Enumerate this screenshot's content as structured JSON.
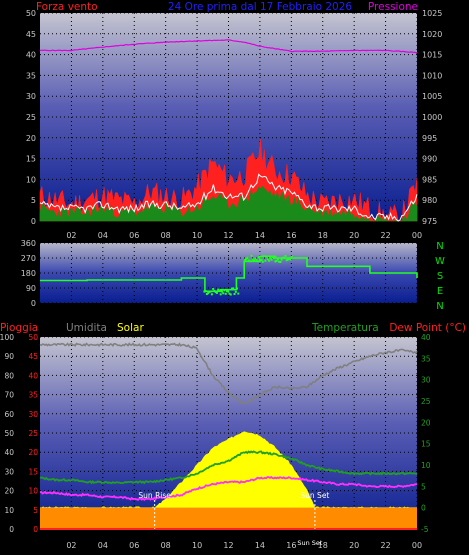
{
  "colors": {
    "wind": "#ff2020",
    "wind_avg": "#ffffff",
    "pressure": "#e000e0",
    "rain": "#ff2020",
    "humidity": "#808080",
    "solar": "#ffff00",
    "temperature": "#20a020",
    "dewpoint": "#ff30ff",
    "direction": "#22ff22",
    "direction_label": "#00e000",
    "title": "#2020ff",
    "axis_text": "#c8c8c8"
  },
  "chart_data": [
    {
      "type": "line",
      "title": "24 Ore prima dal 17 Febbraio 2026",
      "left_label": "Forza vento",
      "right_label": "Pressione",
      "x_ticks": [
        "02",
        "04",
        "06",
        "08",
        "10",
        "12",
        "14",
        "16",
        "18",
        "20",
        "22",
        "00"
      ],
      "y_left_ticks": [
        0,
        5,
        10,
        15,
        20,
        25,
        30,
        35,
        40,
        45,
        50
      ],
      "y_right_ticks": [
        975,
        980,
        985,
        990,
        995,
        1000,
        1005,
        1010,
        1015,
        1020,
        1025
      ],
      "ylim_left": [
        0,
        50
      ],
      "ylim_right": [
        975,
        1025
      ],
      "grid": true,
      "series": [
        {
          "key": "gust",
          "hours": [
            0,
            1,
            2,
            3,
            4,
            5,
            6,
            7,
            8,
            9,
            10,
            11,
            12,
            13,
            14,
            15,
            16,
            17,
            18,
            19,
            20,
            21,
            22,
            23,
            24
          ],
          "values": [
            6,
            5,
            4,
            5,
            6,
            5,
            4,
            7,
            6,
            5,
            8,
            14,
            10,
            11,
            17,
            12,
            11,
            6,
            4,
            5,
            5,
            3,
            1,
            1,
            9
          ]
        },
        {
          "key": "wind",
          "hours": [
            0,
            1,
            2,
            3,
            4,
            5,
            6,
            7,
            8,
            9,
            10,
            11,
            12,
            13,
            14,
            15,
            16,
            17,
            18,
            19,
            20,
            21,
            22,
            23,
            24
          ],
          "values": [
            3,
            2,
            2,
            2,
            3,
            2,
            2,
            3,
            3,
            2,
            3,
            6,
            4,
            5,
            8,
            6,
            5,
            3,
            2,
            2,
            2,
            1,
            0,
            0,
            4
          ]
        },
        {
          "key": "avg",
          "hours": [
            0,
            1,
            2,
            3,
            4,
            5,
            6,
            7,
            8,
            9,
            10,
            11,
            12,
            13,
            14,
            15,
            16,
            17,
            18,
            19,
            20,
            21,
            22,
            23,
            24
          ],
          "values": [
            4,
            3,
            3,
            3,
            4,
            3,
            3,
            4,
            4,
            3,
            4,
            8,
            6,
            6,
            11,
            8,
            7,
            4,
            3,
            3,
            3,
            1,
            1,
            1,
            6
          ]
        },
        {
          "key": "pressure",
          "hours": [
            0,
            2,
            4,
            6,
            8,
            10,
            12,
            13,
            14,
            16,
            18,
            20,
            22,
            24
          ],
          "values": [
            1016,
            1016,
            1016.8,
            1017.5,
            1018,
            1018.3,
            1018.5,
            1018,
            1017,
            1015.8,
            1015.8,
            1016,
            1016,
            1015.5
          ]
        }
      ]
    },
    {
      "type": "line",
      "right_labels": [
        "N",
        "W",
        "S",
        "E",
        "N"
      ],
      "y_ticks": [
        0,
        90,
        180,
        270,
        360
      ],
      "ylim": [
        0,
        360
      ],
      "grid": true,
      "series": [
        {
          "key": "direction",
          "hours": [
            0,
            1,
            2,
            3,
            4,
            5,
            6,
            7,
            8,
            9,
            10,
            10.5,
            11,
            11.5,
            12,
            12.5,
            13,
            14,
            15,
            16,
            17,
            18,
            19,
            20,
            21,
            22,
            23,
            24
          ],
          "values": [
            135,
            135,
            135,
            138,
            138,
            138,
            138,
            138,
            138,
            150,
            150,
            70,
            70,
            80,
            80,
            150,
            250,
            280,
            270,
            270,
            220,
            220,
            220,
            220,
            180,
            180,
            180,
            150
          ]
        }
      ]
    },
    {
      "type": "line",
      "labels": {
        "rain": "Pioggia",
        "humidity": "Umidita",
        "solar": "Solar",
        "temperature": "Temperatura",
        "dewpoint": "Dew Point (°C)",
        "sunrise": "Sun Rise",
        "sunset": "Sun Set",
        "sunset_time": "Sun Set"
      },
      "x_ticks": [
        "02",
        "04",
        "06",
        "08",
        "10",
        "12",
        "14",
        "16",
        "18",
        "20",
        "22",
        "00"
      ],
      "humidity_ticks": [
        0,
        10,
        20,
        30,
        40,
        50,
        60,
        70,
        80,
        90,
        100
      ],
      "rain_ticks": [
        0,
        5,
        10,
        15,
        20,
        25,
        30,
        35,
        40,
        45,
        50
      ],
      "temp_ticks": [
        -5,
        0,
        5,
        10,
        15,
        20,
        25,
        30,
        35,
        40
      ],
      "ylim_humidity": [
        0,
        100
      ],
      "ylim_rain": [
        0,
        50
      ],
      "ylim_temp": [
        -5,
        40
      ],
      "sunrise_hour": 7.3,
      "sunset_hour": 17.5,
      "grid": true,
      "series": [
        {
          "key": "humidity",
          "hours": [
            0,
            1,
            2,
            3,
            4,
            5,
            6,
            7,
            8,
            9,
            10,
            11,
            12,
            13,
            14,
            15,
            16,
            17,
            18,
            19,
            20,
            21,
            22,
            23,
            24
          ],
          "values": [
            96,
            96,
            96,
            96,
            96,
            96,
            96,
            96,
            96,
            96,
            94,
            80,
            71,
            65,
            70,
            74,
            73,
            74,
            80,
            84,
            87,
            90,
            92,
            93,
            92
          ]
        },
        {
          "key": "solar",
          "hours": [
            0,
            7.3,
            8,
            9,
            10,
            11,
            12,
            13,
            14,
            15,
            16,
            17,
            17.5,
            24
          ],
          "values": [
            0,
            0,
            2,
            6,
            10,
            14,
            16,
            18,
            17,
            14,
            10,
            4,
            0,
            0
          ]
        },
        {
          "key": "temperature",
          "hours": [
            0,
            1,
            2,
            3,
            4,
            5,
            6,
            7,
            8,
            9,
            10,
            11,
            12,
            13,
            14,
            15,
            16,
            17,
            18,
            19,
            20,
            21,
            22,
            23,
            24
          ],
          "values": [
            7,
            6.5,
            6.5,
            6,
            6,
            5.8,
            6,
            6,
            6.5,
            7,
            8,
            10,
            11,
            13,
            13,
            12.5,
            11.5,
            10,
            9,
            8.5,
            8,
            8,
            8,
            8,
            8
          ]
        },
        {
          "key": "dewpoint",
          "hours": [
            0,
            1,
            2,
            3,
            4,
            5,
            6,
            7,
            8,
            9,
            10,
            11,
            12,
            13,
            14,
            15,
            16,
            17,
            18,
            19,
            20,
            21,
            22,
            23,
            24
          ],
          "values": [
            3.5,
            3.5,
            3,
            3,
            2.5,
            2.5,
            2,
            2,
            2.5,
            3,
            4.5,
            5.5,
            6,
            6,
            7,
            7,
            7,
            6.5,
            6,
            5.5,
            5.5,
            5,
            5,
            5,
            5.5
          ]
        },
        {
          "key": "rain",
          "hours": [
            0,
            24
          ],
          "values": [
            0,
            0
          ]
        }
      ]
    }
  ]
}
